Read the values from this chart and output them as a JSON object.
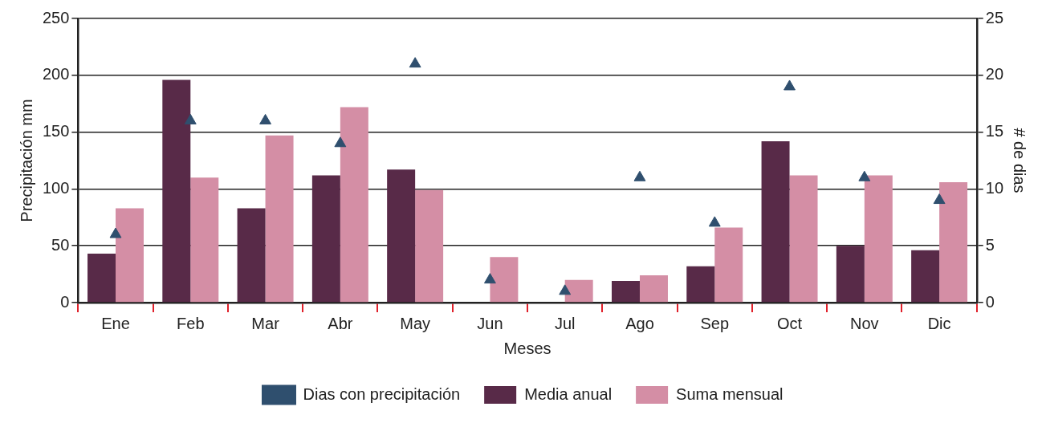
{
  "chart_data": {
    "type": "bar",
    "xlabel": "Meses",
    "ylabel": "Precipitación mm",
    "y2label": "# de dias",
    "categories": [
      "Ene",
      "Feb",
      "Mar",
      "Abr",
      "May",
      "Jun",
      "Jul",
      "Ago",
      "Sep",
      "Oct",
      "Nov",
      "Dic"
    ],
    "series": [
      {
        "name": "Media anual",
        "color": "#582a48",
        "values": [
          43,
          196,
          83,
          112,
          117,
          0,
          0,
          19,
          32,
          142,
          50,
          46
        ]
      },
      {
        "name": "Suma mensual",
        "color": "#d48ea5",
        "values": [
          83,
          110,
          147,
          172,
          99,
          40,
          20,
          24,
          66,
          112,
          112,
          106
        ]
      },
      {
        "name": "Dias con precipitación",
        "type": "scatter",
        "axis": "y2",
        "color": "#2f4f6e",
        "values": [
          6,
          16,
          16,
          14,
          21,
          2,
          1,
          11,
          7,
          19,
          11,
          9
        ]
      }
    ],
    "ylim": [
      0,
      250
    ],
    "yticks": [
      0,
      50,
      100,
      150,
      200,
      250
    ],
    "y2lim": [
      0,
      25
    ],
    "y2ticks": [
      0,
      5,
      10,
      15,
      20,
      25
    ],
    "grid": "y",
    "legend": "bottom",
    "marker": "triangle"
  }
}
